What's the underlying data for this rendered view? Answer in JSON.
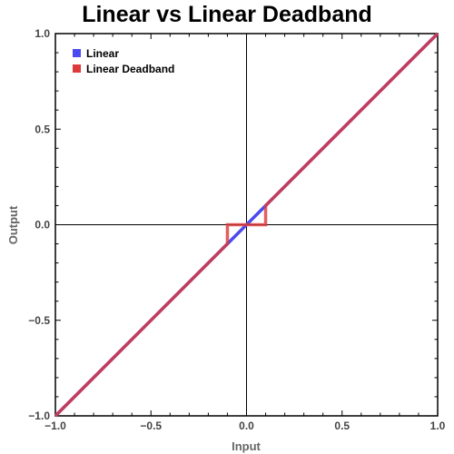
{
  "chart_data": {
    "type": "line",
    "title": "Linear vs Linear Deadband",
    "xlabel": "Input",
    "ylabel": "Output",
    "xlim": [
      -1.0,
      1.0
    ],
    "ylim": [
      -1.0,
      1.0
    ],
    "xticks": [
      -1.0,
      -0.5,
      0.0,
      0.5,
      1.0
    ],
    "yticks": [
      -1.0,
      -0.5,
      0.0,
      0.5,
      1.0
    ],
    "xtick_labels": [
      "−1.0",
      "−0.5",
      "0.0",
      "0.5",
      "1.0"
    ],
    "ytick_labels": [
      "−1.0",
      "−0.5",
      "0.0",
      "0.5",
      "1.0"
    ],
    "grid": false,
    "legend_position": "top-left",
    "series": [
      {
        "name": "Linear",
        "color": "#4a4af0",
        "x": [
          -1.0,
          1.0
        ],
        "y": [
          -1.0,
          1.0
        ]
      },
      {
        "name": "Linear Deadband",
        "color": "#dd3b3b",
        "x": [
          -1.0,
          -0.1,
          -0.1,
          0.1,
          0.1,
          1.0
        ],
        "y": [
          -1.0,
          -0.1,
          0.0,
          0.0,
          0.1,
          1.0
        ]
      }
    ]
  }
}
